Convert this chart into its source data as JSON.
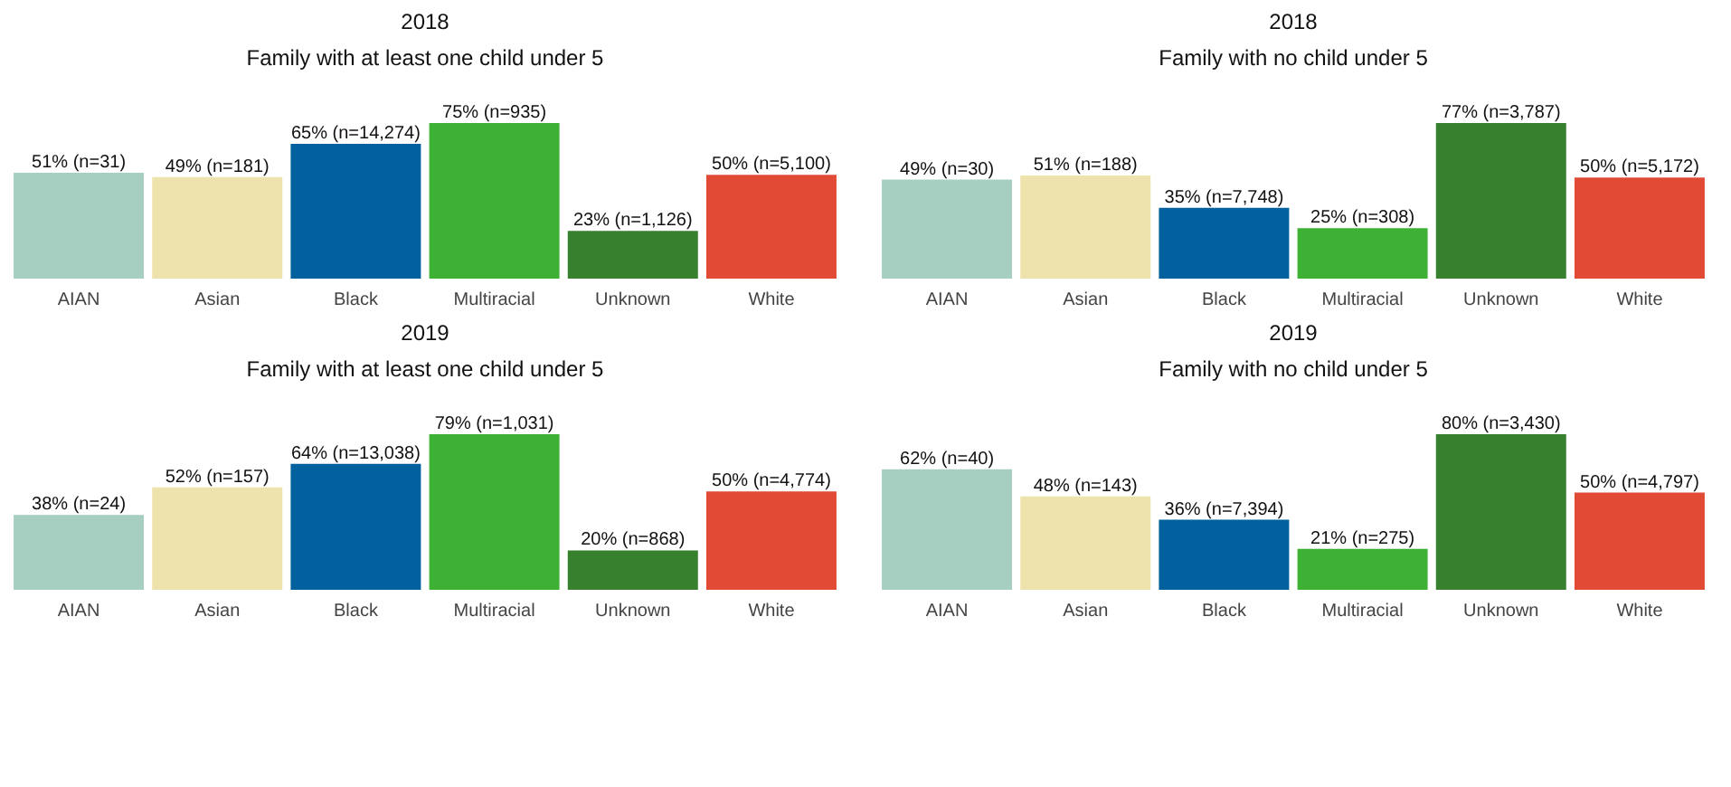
{
  "chart_data": [
    {
      "type": "bar",
      "title": "2018",
      "subtitle": "Family with at least one\nchild under 5",
      "categories": [
        "AIAN",
        "Asian",
        "Black",
        "Multiracial",
        "Unknown",
        "White"
      ],
      "values": [
        51,
        49,
        65,
        75,
        23,
        50
      ],
      "value_labels": [
        "51% (n=31)",
        "49% (n=181)",
        "65% (n=14,274)",
        "75% (n=935)",
        "23% (n=1,126)",
        "50% (n=5,100)"
      ],
      "colors": [
        "#a6cfc1",
        "#efe3ad",
        "#00619e",
        "#3cb134",
        "#36802e",
        "#e14b35"
      ]
    },
    {
      "type": "bar",
      "title": "2018",
      "subtitle": "Family with no child\nunder 5",
      "categories": [
        "AIAN",
        "Asian",
        "Black",
        "Multiracial",
        "Unknown",
        "White"
      ],
      "values": [
        49,
        51,
        35,
        25,
        77,
        50
      ],
      "value_labels": [
        "49% (n=30)",
        "51% (n=188)",
        "35% (n=7,748)",
        "25% (n=308)",
        "77% (n=3,787)",
        "50% (n=5,172)"
      ],
      "colors": [
        "#a6cfc1",
        "#efe3ad",
        "#00619e",
        "#3cb134",
        "#36802e",
        "#e14b35"
      ]
    },
    {
      "type": "bar",
      "title": "2019",
      "subtitle": "Family with at least one\nchild under 5",
      "categories": [
        "AIAN",
        "Asian",
        "Black",
        "Multiracial",
        "Unknown",
        "White"
      ],
      "values": [
        38,
        52,
        64,
        79,
        20,
        50
      ],
      "value_labels": [
        "38% (n=24)",
        "52% (n=157)",
        "64% (n=13,038)",
        "79% (n=1,031)",
        "20% (n=868)",
        "50% (n=4,774)"
      ],
      "colors": [
        "#a6cfc1",
        "#efe3ad",
        "#00619e",
        "#3cb134",
        "#36802e",
        "#e14b35"
      ]
    },
    {
      "type": "bar",
      "title": "2019",
      "subtitle": "Family with no child\nunder 5",
      "categories": [
        "AIAN",
        "Asian",
        "Black",
        "Multiracial",
        "Unknown",
        "White"
      ],
      "values": [
        62,
        48,
        36,
        21,
        80,
        50
      ],
      "value_labels": [
        "62% (n=40)",
        "48% (n=143)",
        "36% (n=7,394)",
        "21% (n=275)",
        "80% (n=3,430)",
        "50% (n=4,797)"
      ],
      "colors": [
        "#a6cfc1",
        "#efe3ad",
        "#00619e",
        "#3cb134",
        "#36802e",
        "#e14b35"
      ]
    }
  ]
}
